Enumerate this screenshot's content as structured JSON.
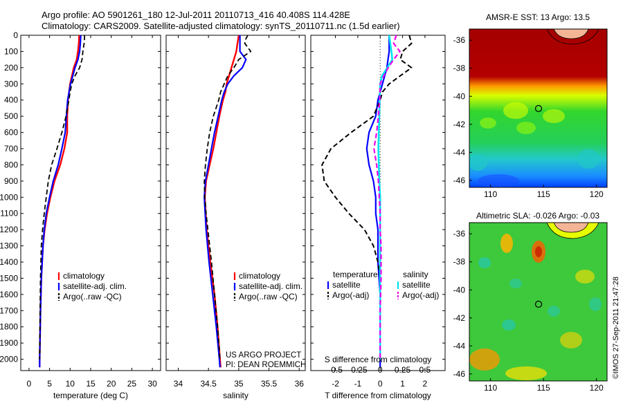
{
  "header": {
    "line1": "Argo profile: AO 5901261_180 12-Jul-2011 20110713_416 40.408S 114.428E",
    "line2": "Climatology: CARS2009. Satellite-adjusted climatology: synTS_20110711.nc (1.5d earlier)"
  },
  "colors": {
    "clim": "#ff0000",
    "sat": "#0000ff",
    "argo": "#000000",
    "sat_s": "#00e5ee",
    "argo_s": "#ee00ee"
  },
  "credits": {
    "project": "US ARGO PROJECT",
    "pi": "PI: DEAN ROEMMICH",
    "stamp": "©IMOS 27-Sep-2011 21:47:28"
  },
  "chart_data": [
    {
      "type": "line",
      "id": "temperature",
      "xlabel": "temperature (deg C)",
      "ylabel": "",
      "xlim": [
        -2,
        32
      ],
      "ylim": [
        2070,
        0
      ],
      "x_ticks": [
        0,
        5,
        10,
        15,
        20,
        25,
        30
      ],
      "y_ticks": [
        0,
        100,
        200,
        300,
        400,
        500,
        600,
        700,
        800,
        900,
        1000,
        1100,
        1200,
        1300,
        1400,
        1500,
        1600,
        1700,
        1800,
        1900,
        2000
      ],
      "legend": [
        "climatology",
        "satellite-adj. clim.",
        "Argo(..raw -QC)"
      ],
      "series": [
        {
          "name": "climatology",
          "depth": [
            0,
            50,
            100,
            150,
            200,
            300,
            400,
            500,
            600,
            700,
            800,
            900,
            1000,
            1100,
            1200,
            1300,
            1400,
            1500,
            1700,
            2000,
            2050
          ],
          "values": [
            12.2,
            12.1,
            11.9,
            11.6,
            10.9,
            10.0,
            9.5,
            9.3,
            9.3,
            8.6,
            7.6,
            6.2,
            5.2,
            4.4,
            3.8,
            3.4,
            3.2,
            3.0,
            2.8,
            2.6,
            2.6
          ]
        },
        {
          "name": "satellite-adj. clim.",
          "depth": [
            0,
            50,
            100,
            150,
            200,
            300,
            400,
            500,
            600,
            700,
            800,
            900,
            1000,
            1100,
            1200,
            1300,
            1400,
            1500,
            1700,
            2000,
            2050
          ],
          "values": [
            12.6,
            12.5,
            12.3,
            11.9,
            11.2,
            10.1,
            9.4,
            9.1,
            8.8,
            8.0,
            7.1,
            5.9,
            5.0,
            4.2,
            3.7,
            3.4,
            3.2,
            3.0,
            2.8,
            2.6,
            2.6
          ]
        },
        {
          "name": "Argo(..raw -QC)",
          "depth": [
            0,
            20,
            50,
            100,
            150,
            200,
            250,
            300,
            350,
            400,
            500,
            600,
            700,
            800,
            900,
            1000,
            1100,
            1200,
            1300,
            1400,
            1500,
            1700,
            2000
          ],
          "values": [
            13.5,
            13.5,
            13.4,
            13.1,
            12.9,
            12.3,
            11.2,
            10.4,
            10.0,
            9.7,
            9.0,
            8.0,
            6.8,
            5.5,
            4.7,
            4.2,
            3.7,
            3.3,
            3.0,
            2.9,
            2.8,
            2.7,
            2.6
          ]
        }
      ]
    },
    {
      "type": "line",
      "id": "salinity",
      "xlabel": "salinity",
      "ylabel": "",
      "xlim": [
        33.8,
        36.1
      ],
      "ylim": [
        2070,
        0
      ],
      "x_ticks": [
        34,
        34.5,
        35,
        35.5,
        36
      ],
      "legend": [
        "climatology",
        "satellite-adj. clim.",
        "Argo(..raw -QC)"
      ],
      "series": [
        {
          "name": "climatology",
          "depth": [
            0,
            50,
            100,
            150,
            200,
            250,
            300,
            350,
            400,
            500,
            600,
            700,
            800,
            900,
            1000,
            1200,
            1400,
            1600,
            1800,
            2000,
            2050
          ],
          "values": [
            35.0,
            34.98,
            34.96,
            34.92,
            34.88,
            34.84,
            34.8,
            34.78,
            34.74,
            34.68,
            34.63,
            34.58,
            34.52,
            34.46,
            34.44,
            34.47,
            34.53,
            34.6,
            34.65,
            34.69,
            34.7
          ]
        },
        {
          "name": "satellite-adj. clim.",
          "depth": [
            0,
            50,
            100,
            150,
            200,
            250,
            300,
            350,
            400,
            500,
            600,
            700,
            800,
            900,
            1000,
            1200,
            1400,
            1600,
            1800,
            2000,
            2050
          ],
          "values": [
            35.02,
            35.02,
            35.02,
            35.12,
            35.06,
            34.92,
            34.82,
            34.76,
            34.72,
            34.66,
            34.6,
            34.55,
            34.5,
            34.45,
            34.43,
            34.46,
            34.51,
            34.57,
            34.63,
            34.68,
            34.69
          ]
        },
        {
          "name": "Argo(..raw -QC)",
          "depth": [
            0,
            20,
            50,
            100,
            150,
            200,
            250,
            300,
            350,
            400,
            500,
            600,
            700,
            800,
            900,
            1000,
            1100,
            1200,
            1300,
            1400,
            1600,
            1800,
            2000
          ],
          "values": [
            35.15,
            35.12,
            35.1,
            35.2,
            35.0,
            34.92,
            34.82,
            34.76,
            34.7,
            34.67,
            34.58,
            34.52,
            34.48,
            34.45,
            34.43,
            34.44,
            34.46,
            34.49,
            34.52,
            34.55,
            34.6,
            34.65,
            34.69
          ]
        }
      ]
    },
    {
      "type": "line",
      "id": "difference",
      "xlabel": "T difference from climatology",
      "xlabel_top": "S difference from climatology",
      "xlim": [
        -3.1,
        2.9
      ],
      "ylim": [
        2070,
        0
      ],
      "x_ticks": [
        -2,
        -1,
        0,
        1,
        2
      ],
      "x_ticks_s": [
        -0.5,
        -0.25,
        0,
        0.25,
        0.5
      ],
      "legend_temp_title": "temperature",
      "legend_sal_title": "salinity",
      "legend_sat": "satellite",
      "legend_argo": "Argo(-adj)",
      "series": [
        {
          "name": "temperature satellite",
          "depth": [
            0,
            100,
            200,
            300,
            400,
            500,
            600,
            700,
            800,
            900,
            1000,
            1100,
            1200,
            1400,
            1600,
            1800,
            2000,
            2050
          ],
          "values": [
            0.4,
            0.4,
            0.3,
            0.1,
            -0.1,
            -0.2,
            -0.5,
            -0.6,
            -0.5,
            -0.3,
            -0.2,
            -0.2,
            -0.1,
            -0.1,
            0,
            0,
            0,
            0
          ]
        },
        {
          "name": "temperature Argo(-adj)",
          "depth": [
            0,
            50,
            100,
            150,
            200,
            250,
            300,
            350,
            400,
            500,
            600,
            700,
            800,
            900,
            1000,
            1100,
            1200,
            1300,
            1400,
            1500,
            1700,
            2000
          ],
          "values": [
            1.3,
            1.4,
            1.0,
            0.9,
            1.4,
            0.9,
            0.4,
            0.1,
            0.0,
            -0.3,
            -1.3,
            -2.2,
            -2.6,
            -2.5,
            -2.0,
            -1.4,
            -0.7,
            -0.3,
            -0.1,
            0,
            0,
            0
          ]
        },
        {
          "name": "salinity satellite",
          "depth": [
            0,
            100,
            150,
            200,
            250,
            300,
            400,
            500,
            700,
            900,
            1000,
            1100,
            1300,
            1500,
            1700,
            2000
          ],
          "values": [
            0.1,
            0.125,
            0.135,
            0.08,
            0.02,
            0.0,
            -0.005,
            -0.01,
            -0.02,
            -0.01,
            0,
            0,
            0,
            0,
            0,
            0
          ]
        },
        {
          "name": "salinity Argo(-adj)",
          "depth": [
            0,
            50,
            100,
            150,
            200,
            250,
            300,
            400,
            500,
            600,
            700,
            800,
            900,
            1000,
            1100,
            1200,
            1300,
            1500,
            1700,
            2000
          ],
          "values": [
            0.18,
            0.15,
            0.22,
            0.15,
            0.09,
            0.04,
            0.0,
            -0.005,
            -0.02,
            -0.04,
            -0.07,
            -0.04,
            -0.02,
            -0.01,
            0,
            0,
            0.01,
            0.01,
            0,
            0
          ]
        }
      ]
    },
    {
      "type": "heatmap",
      "id": "sst-map",
      "title": "AMSR-E SST: 13 Argo: 13.5",
      "x_ticks": [
        110,
        115,
        120
      ],
      "y_ticks": [
        -36,
        -38,
        -40,
        -42,
        -44,
        -46
      ],
      "xlim": [
        108,
        121
      ],
      "ylim": [
        -46.5,
        -35.2
      ],
      "marker": {
        "lon": 114.43,
        "lat": -40.41
      }
    },
    {
      "type": "heatmap",
      "id": "sla-map",
      "title": "Altimetric SLA: -0.026 Argo: -0.03",
      "x_ticks": [
        110,
        115,
        120
      ],
      "y_ticks": [
        -36,
        -38,
        -40,
        -42,
        -44,
        -46
      ],
      "xlim": [
        108,
        121
      ],
      "ylim": [
        -46.5,
        -35.2
      ],
      "marker": {
        "lon": 114.43,
        "lat": -40.41
      }
    }
  ]
}
